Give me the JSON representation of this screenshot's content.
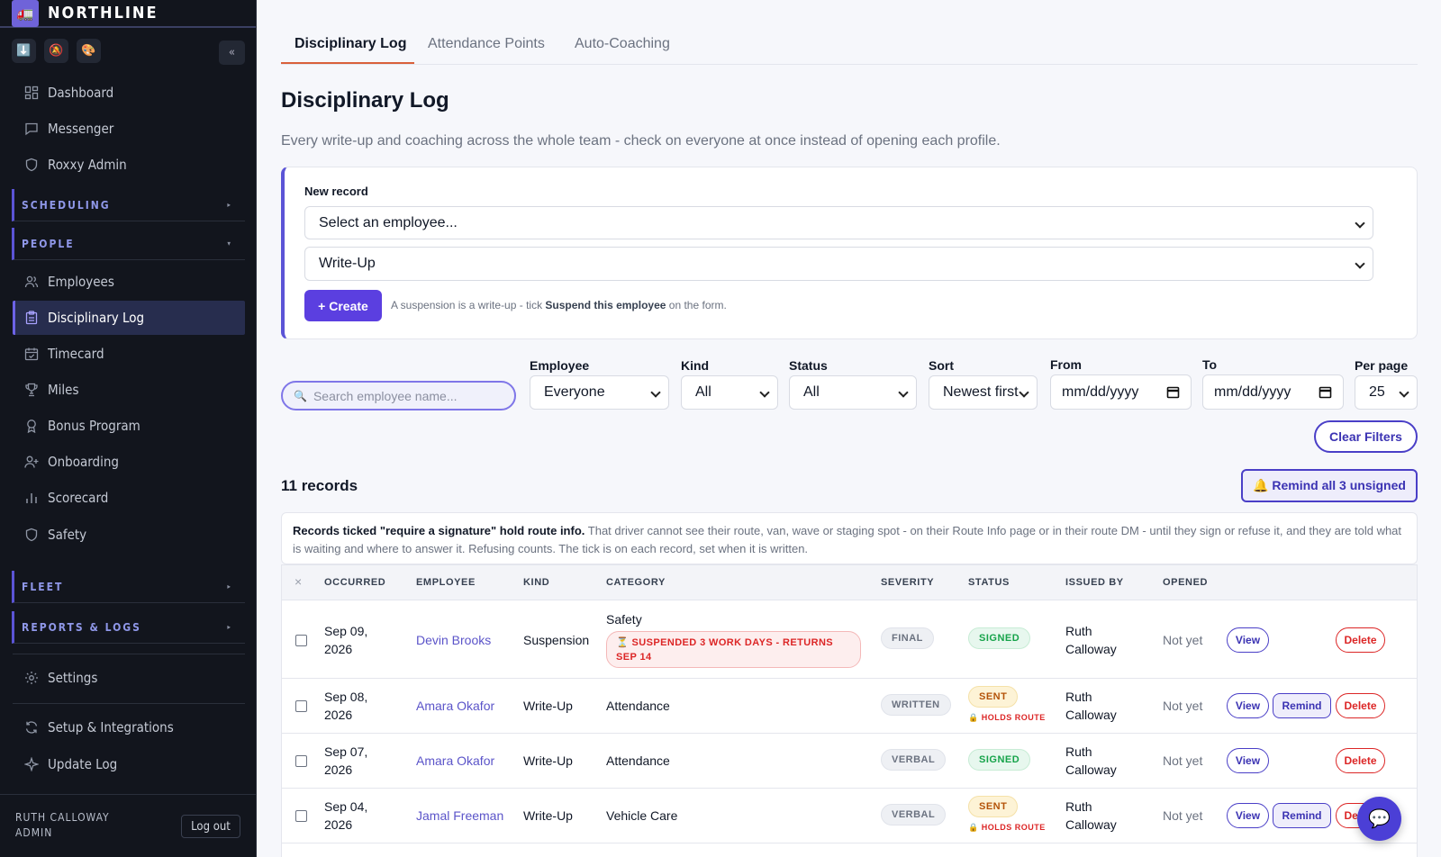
{
  "app": {
    "name": "NORTHLINE",
    "logo_icon": "🚛"
  },
  "sidebar": {
    "tools": [
      "⬇️",
      "🔕",
      "🎨"
    ],
    "collapse_label": "«",
    "top_items": [
      {
        "label": "Dashboard",
        "icon": "dashboard-icon"
      },
      {
        "label": "Messenger",
        "icon": "chat-icon"
      },
      {
        "label": "Roxxy Admin",
        "icon": "shield-icon"
      }
    ],
    "sections": {
      "scheduling": "SCHEDULING",
      "people": "PEOPLE",
      "fleet": "FLEET",
      "reports": "REPORTS & LOGS"
    },
    "people_items": [
      {
        "label": "Employees",
        "icon": "users-icon"
      },
      {
        "label": "Disciplinary Log",
        "icon": "clipboard-icon"
      },
      {
        "label": "Timecard",
        "icon": "calendar-check-icon"
      },
      {
        "label": "Miles",
        "icon": "trophy-icon"
      },
      {
        "label": "Bonus Program",
        "icon": "award-icon"
      },
      {
        "label": "Onboarding",
        "icon": "user-plus-icon"
      },
      {
        "label": "Scorecard",
        "icon": "bar-chart-icon"
      },
      {
        "label": "Safety",
        "icon": "shield-icon"
      }
    ],
    "bottom_items": [
      {
        "label": "Settings",
        "icon": "gear-icon"
      },
      {
        "label": "Setup & Integrations",
        "icon": "refresh-icon"
      },
      {
        "label": "Update Log",
        "icon": "sparkle-icon"
      }
    ],
    "user": {
      "name": "RUTH CALLOWAY",
      "role": "ADMIN",
      "logout": "Log out"
    }
  },
  "tabs": [
    "Disciplinary Log",
    "Attendance Points",
    "Auto-Coaching"
  ],
  "page": {
    "title": "Disciplinary Log",
    "subtitle": "Every write-up and coaching across the whole team - check on everyone at once instead of opening each profile."
  },
  "new_record": {
    "label": "New record",
    "employee_select": "Select an employee...",
    "kind_select": "Write-Up",
    "create_label": "+ Create",
    "hint_pre": "A suspension is a write-up - tick ",
    "hint_bold": "Suspend this employee",
    "hint_post": " on the form."
  },
  "filters": {
    "search_placeholder": "Search employee name...",
    "employee_label": "Employee",
    "employee_value": "Everyone",
    "kind_label": "Kind",
    "kind_value": "All",
    "status_label": "Status",
    "status_value": "All",
    "sort_label": "Sort",
    "sort_value": "Newest first",
    "from_label": "From",
    "from_value": "mm/dd/yyyy",
    "to_label": "To",
    "to_value": "mm/dd/yyyy",
    "perpage_label": "Per page",
    "perpage_value": "25",
    "clear_label": "Clear Filters"
  },
  "records": {
    "count_label": "11 records",
    "remind_all_label": "🔔 Remind all 3 unsigned",
    "notice_bold": "Records ticked \"require a signature\" hold route info.",
    "notice_text": " That driver cannot see their route, van, wave or staging spot - on their Route Info page or in their route DM - until they sign or refuse it, and they are told what is waiting and where to answer it. Refusing counts. The tick is on each record, set when it is written."
  },
  "table": {
    "select_all": "×",
    "columns": [
      "OCCURRED",
      "EMPLOYEE",
      "KIND",
      "CATEGORY",
      "SEVERITY",
      "STATUS",
      "ISSUED BY",
      "OPENED"
    ],
    "rows": [
      {
        "date1": "Sep 09,",
        "date2": "2026",
        "employee": "Devin Brooks",
        "kind": "Suspension",
        "category": "Safety",
        "suspension": "⏳ SUSPENDED 3 WORK DAYS - RETURNS SEP 14",
        "severity": "FINAL",
        "status": "SIGNED",
        "holds": "",
        "issued1": "Ruth",
        "issued2": "Calloway",
        "opened": "Not yet",
        "view": "View",
        "remind": "",
        "delete": "Delete"
      },
      {
        "date1": "Sep 08,",
        "date2": "2026",
        "employee": "Amara Okafor",
        "kind": "Write-Up",
        "category": "Attendance",
        "suspension": "",
        "severity": "WRITTEN",
        "status": "SENT",
        "holds": "🔒 HOLDS ROUTE",
        "issued1": "Ruth",
        "issued2": "Calloway",
        "opened": "Not yet",
        "view": "View",
        "remind": "Remind",
        "delete": "Delete"
      },
      {
        "date1": "Sep 07,",
        "date2": "2026",
        "employee": "Amara Okafor",
        "kind": "Write-Up",
        "category": "Attendance",
        "suspension": "",
        "severity": "VERBAL",
        "status": "SIGNED",
        "holds": "",
        "issued1": "Ruth",
        "issued2": "Calloway",
        "opened": "Not yet",
        "view": "View",
        "remind": "",
        "delete": "Delete"
      },
      {
        "date1": "Sep 04,",
        "date2": "2026",
        "employee": "Jamal Freeman",
        "kind": "Write-Up",
        "category": "Vehicle Care",
        "suspension": "",
        "severity": "VERBAL",
        "status": "SENT",
        "holds": "🔒 HOLDS ROUTE",
        "issued1": "Ruth",
        "issued2": "Calloway",
        "opened": "Not yet",
        "view": "View",
        "remind": "Remind",
        "delete": "Delete"
      }
    ]
  },
  "chat_icon": "💬"
}
